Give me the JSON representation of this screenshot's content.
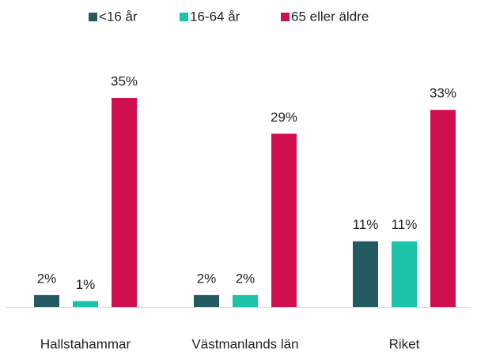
{
  "chart_data": {
    "type": "bar",
    "categories": [
      "Hallstahammar",
      "Västmanlands län",
      "Riket"
    ],
    "series": [
      {
        "name": "<16 år",
        "color": "#235a63",
        "values": [
          2,
          2,
          11
        ],
        "value_labels": [
          "2%",
          "2%",
          "11%"
        ]
      },
      {
        "name": "16-64 år",
        "color": "#1cc3a8",
        "values": [
          1,
          2,
          11
        ],
        "value_labels": [
          "1%",
          "2%",
          "11%"
        ]
      },
      {
        "name": "65 eller äldre",
        "color": "#d0104c",
        "values": [
          35,
          29,
          33
        ],
        "value_labels": [
          "35%",
          "29%",
          "33%"
        ]
      }
    ],
    "legend": "top"
  }
}
